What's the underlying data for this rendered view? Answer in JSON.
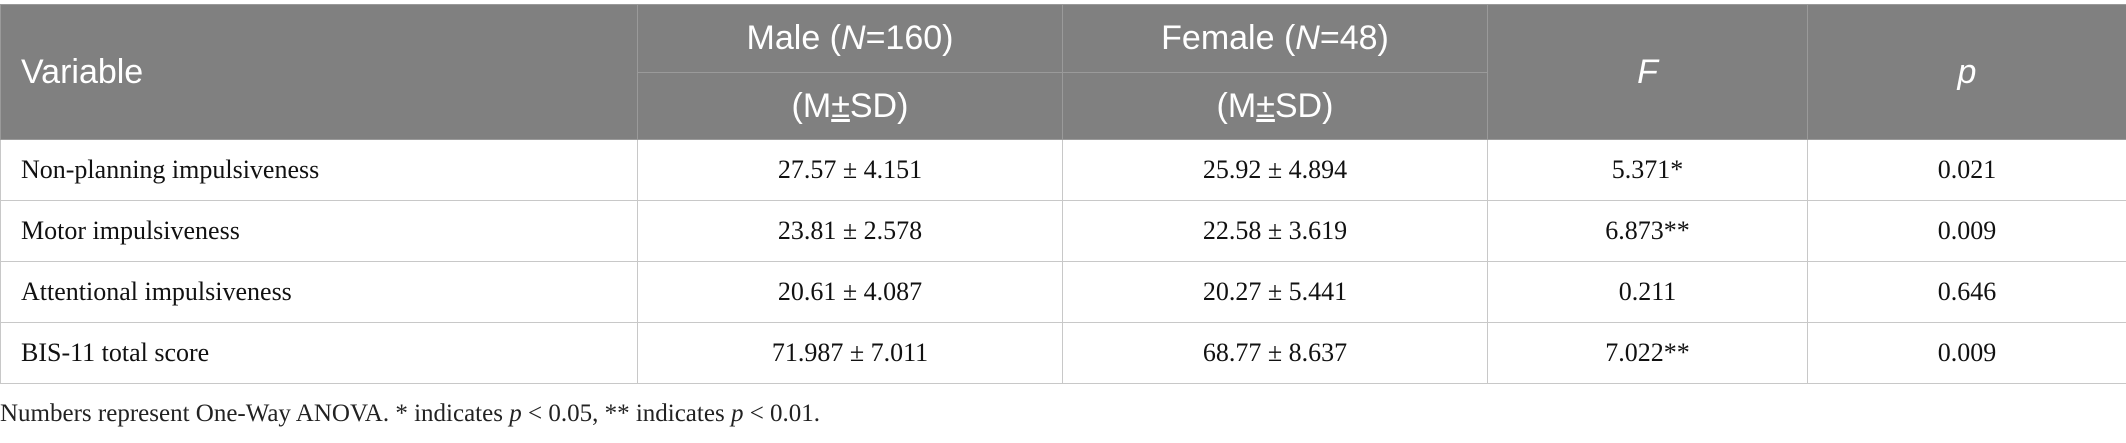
{
  "table": {
    "header": {
      "variable": "Variable",
      "male_prefix": "Male (",
      "male_n": "N",
      "male_suffix": "=160)",
      "female_prefix": "Female (",
      "female_n": "N",
      "female_suffix": "=48)",
      "stat_open": "(M",
      "stat_pm": "±",
      "stat_close": "SD)",
      "f": "F",
      "p": "p"
    },
    "rows": [
      {
        "variable": "Non-planning impulsiveness",
        "male": "27.57 ± 4.151",
        "female": "25.92 ± 4.894",
        "f": "5.371*",
        "p": "0.021"
      },
      {
        "variable": "Motor impulsiveness",
        "male": "23.81 ± 2.578",
        "female": "22.58 ± 3.619",
        "f": "6.873**",
        "p": "0.009"
      },
      {
        "variable": "Attentional impulsiveness",
        "male": "20.61 ± 4.087",
        "female": "20.27 ± 5.441",
        "f": "0.211",
        "p": "0.646"
      },
      {
        "variable": "BIS-11 total score",
        "male": "71.987 ± 7.011",
        "female": "68.77 ± 8.637",
        "f": "7.022**",
        "p": "0.009"
      }
    ]
  },
  "note": {
    "part1": "Numbers represent One-Way ANOVA. * indicates ",
    "p1": "p",
    "part2": " < 0.05, ** indicates ",
    "p2": "p",
    "part3": " < 0.01."
  },
  "colors": {
    "header_bg": "#808080",
    "header_text": "#ffffff"
  }
}
